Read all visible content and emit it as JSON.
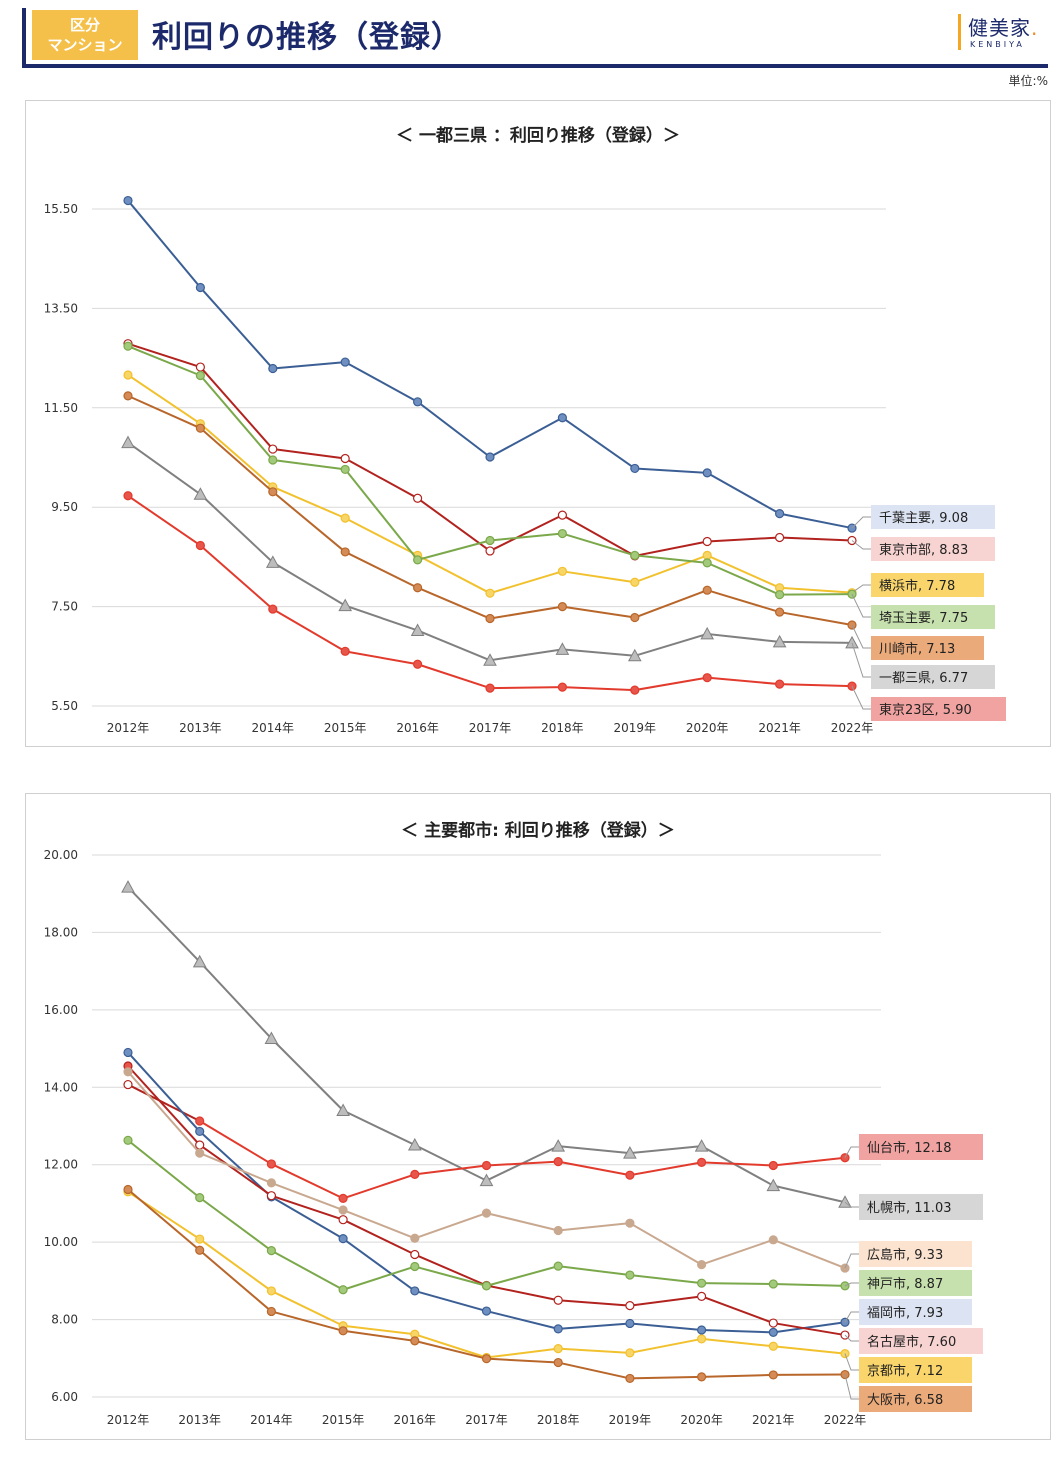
{
  "header": {
    "badge_line1": "区分",
    "badge_line2": "マンション",
    "title": "利回りの推移（登録）",
    "logo_jp": "健美家",
    "logo_dot": ".",
    "logo_en": "KENBIYA",
    "unit": "単位:%"
  },
  "chart_data": [
    {
      "type": "line",
      "title": "＜ 一都三県 ：利回り推移（登録）＞",
      "categories": [
        "2012年",
        "2013年",
        "2014年",
        "2015年",
        "2016年",
        "2017年",
        "2018年",
        "2019年",
        "2020年",
        "2021年",
        "2022年"
      ],
      "ylim": [
        5.5,
        15.5
      ],
      "yticks": [
        "5.50",
        "7.50",
        "9.50",
        "11.50",
        "13.50",
        "15.50"
      ],
      "grid": true,
      "series": [
        {
          "name": "千葉主要",
          "color": "#3b5f95",
          "marker": "circle",
          "fill": "#6f8fc0",
          "label_bg": "#dce3f2",
          "end_label": "千葉主要, 9.08",
          "values": [
            15.67,
            13.92,
            12.29,
            12.42,
            11.62,
            10.51,
            11.3,
            10.28,
            10.19,
            9.37,
            9.08
          ]
        },
        {
          "name": "東京市部",
          "color": "#b2221e",
          "marker": "circle",
          "fill": "#ffffff",
          "label_bg": "#f7d3d1",
          "end_label": "東京市部, 8.83",
          "values": [
            12.79,
            12.32,
            10.67,
            10.48,
            9.68,
            8.62,
            9.34,
            8.52,
            8.81,
            8.89,
            8.83
          ]
        },
        {
          "name": "横浜市",
          "color": "#f2c12e",
          "marker": "circle",
          "fill": "#f7d567",
          "label_bg": "#f9d56b",
          "end_label": "横浜市, 7.78",
          "values": [
            12.16,
            11.18,
            9.91,
            9.28,
            8.53,
            7.77,
            8.21,
            7.99,
            8.53,
            7.88,
            7.78
          ]
        },
        {
          "name": "埼玉主要",
          "color": "#7aa84a",
          "marker": "circle",
          "fill": "#a3c97a",
          "label_bg": "#c7e1ae",
          "end_label": "埼玉主要, 7.75",
          "values": [
            12.74,
            12.15,
            10.45,
            10.26,
            8.44,
            8.83,
            8.97,
            8.53,
            8.38,
            7.74,
            7.75
          ]
        },
        {
          "name": "川崎市",
          "color": "#b8662a",
          "marker": "circle",
          "fill": "#d48b55",
          "label_bg": "#eaaa7a",
          "end_label": "川崎市, 7.13",
          "values": [
            11.74,
            11.09,
            9.81,
            8.6,
            7.88,
            7.26,
            7.5,
            7.28,
            7.83,
            7.39,
            7.13
          ]
        },
        {
          "name": "一都三県",
          "color": "#808080",
          "marker": "triangle",
          "fill": "#bdbdbd",
          "label_bg": "#d6d6d6",
          "end_label": "一都三県, 6.77",
          "values": [
            10.8,
            9.76,
            8.39,
            7.52,
            7.02,
            6.42,
            6.64,
            6.51,
            6.95,
            6.79,
            6.77
          ]
        },
        {
          "name": "東京23区",
          "color": "#e23a2c",
          "marker": "circle",
          "fill": "#e8554a",
          "label_bg": "#f0a3a0",
          "end_label": "東京23区, 5.90",
          "values": [
            9.73,
            8.73,
            7.45,
            6.6,
            6.34,
            5.86,
            5.88,
            5.82,
            6.07,
            5.94,
            5.9
          ]
        }
      ]
    },
    {
      "type": "line",
      "title": "＜ 主要都市: 利回り推移（登録）＞",
      "categories": [
        "2012年",
        "2013年",
        "2014年",
        "2015年",
        "2016年",
        "2017年",
        "2018年",
        "2019年",
        "2020年",
        "2021年",
        "2022年"
      ],
      "ylim": [
        6.0,
        20.0
      ],
      "yticks": [
        "6.00",
        "8.00",
        "10.00",
        "12.00",
        "14.00",
        "16.00",
        "18.00",
        "20.00"
      ],
      "grid": true,
      "series": [
        {
          "name": "札幌市",
          "color": "#808080",
          "marker": "triangle",
          "fill": "#bdbdbd",
          "label_bg": "#d6d6d6",
          "end_label": "札幌市, 11.03",
          "values": [
            19.17,
            17.24,
            15.26,
            13.4,
            12.51,
            11.59,
            12.48,
            12.3,
            12.48,
            11.46,
            11.03
          ]
        },
        {
          "name": "仙台市",
          "color": "#b2221e",
          "marker": "circle",
          "fill": "#ffffff",
          "label_bg": "#f0a3a0",
          "end_label": "仙台市, 12.18",
          "values": [
            14.07,
            13.13,
            12.02,
            11.13,
            11.75,
            11.98,
            12.08,
            11.73,
            12.06,
            11.98,
            12.18
          ],
          "line_color_after": "#e23a2c",
          "fill_after": "#e8554a"
        },
        {
          "name": "福岡市",
          "color": "#3b5f95",
          "marker": "circle",
          "fill": "#6f8fc0",
          "label_bg": "#dce3f2",
          "end_label": "福岡市, 7.93",
          "values": [
            14.9,
            12.86,
            11.17,
            10.09,
            8.74,
            8.22,
            7.76,
            7.9,
            7.73,
            7.67,
            7.93
          ]
        },
        {
          "name": "名古屋市",
          "color": "#b2221e",
          "marker": "circle",
          "fill": "#e8554a",
          "label_bg": "#f7d3d1",
          "end_label": "名古屋市, 7.60",
          "values": [
            14.55,
            12.51,
            11.2,
            10.58,
            9.68,
            8.88,
            8.5,
            8.36,
            8.6,
            7.91,
            7.6
          ],
          "fill_after": "#ffffff"
        },
        {
          "name": "広島市",
          "color": "#c9a890",
          "marker": "circle",
          "fill": "#c9a890",
          "label_bg": "#fbe3d0",
          "end_label": "広島市, 9.33",
          "values": [
            14.4,
            12.3,
            11.53,
            10.83,
            10.1,
            10.75,
            10.3,
            10.49,
            9.42,
            10.06,
            9.33
          ]
        },
        {
          "name": "神戸市",
          "color": "#7aa84a",
          "marker": "circle",
          "fill": "#a3c97a",
          "label_bg": "#c7e1ae",
          "end_label": "神戸市, 8.87",
          "values": [
            12.63,
            11.15,
            9.78,
            8.77,
            9.37,
            8.87,
            9.38,
            9.15,
            8.94,
            8.92,
            8.87
          ]
        },
        {
          "name": "京都市",
          "color": "#f2c12e",
          "marker": "circle",
          "fill": "#f7d567",
          "label_bg": "#f9d56b",
          "end_label": "京都市, 7.12",
          "values": [
            11.3,
            10.08,
            8.74,
            7.84,
            7.62,
            7.02,
            7.25,
            7.14,
            7.5,
            7.31,
            7.12
          ]
        },
        {
          "name": "大阪市",
          "color": "#b8662a",
          "marker": "circle",
          "fill": "#d48b55",
          "label_bg": "#eaaa7a",
          "end_label": "大阪市, 6.58",
          "values": [
            11.36,
            9.79,
            8.21,
            7.71,
            7.45,
            6.99,
            6.89,
            6.48,
            6.52,
            6.57,
            6.58
          ]
        }
      ]
    }
  ]
}
